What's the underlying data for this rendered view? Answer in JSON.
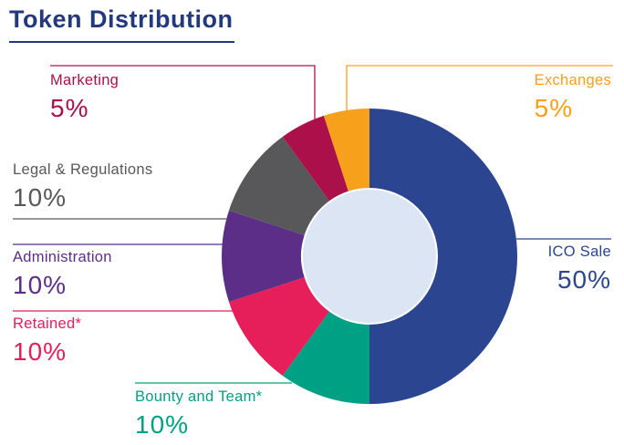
{
  "colors": {
    "title": "#223a7d",
    "donut_hole": "#dbe5f4",
    "background": "#ffffff"
  },
  "chart_data": {
    "type": "pie",
    "variant": "donut",
    "title": "Token Distribution",
    "unit": "%",
    "legend_position": "around",
    "start_angle_deg": 0,
    "direction": "clockwise",
    "segments": [
      {
        "label": "ICO Sale",
        "value": 50,
        "value_text": "50%",
        "color": "#2b4590"
      },
      {
        "label": "Bounty and Team*",
        "value": 10,
        "value_text": "10%",
        "color": "#00a085"
      },
      {
        "label": "Retained*",
        "value": 10,
        "value_text": "10%",
        "color": "#e61e5a"
      },
      {
        "label": "Administration",
        "value": 10,
        "value_text": "10%",
        "color": "#5c2e87"
      },
      {
        "label": "Legal & Regulations",
        "value": 10,
        "value_text": "10%",
        "color": "#58585a"
      },
      {
        "label": "Marketing",
        "value": 5,
        "value_text": "5%",
        "color": "#ac104b"
      },
      {
        "label": "Exchanges",
        "value": 5,
        "value_text": "5%",
        "color": "#f6a01b"
      }
    ]
  }
}
